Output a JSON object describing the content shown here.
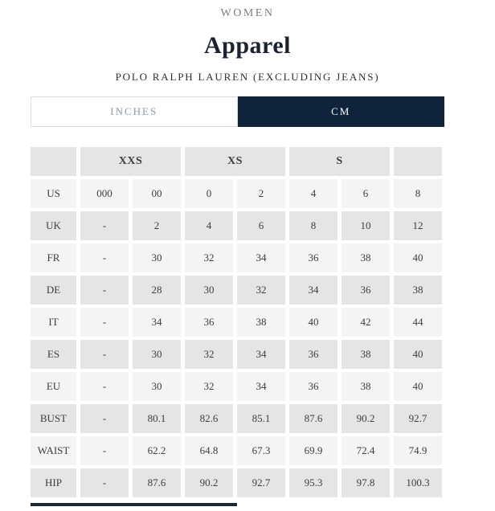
{
  "header": {
    "category": "WOMEN",
    "title": "Apparel",
    "subtitle": "POLO RALPH LAUREN (EXCLUDING JEANS)"
  },
  "tabs": {
    "inches_label": "INCHES",
    "cm_label": "CM",
    "active": "CM"
  },
  "size_chart": {
    "group_headers": [
      {
        "label": "",
        "span": 1
      },
      {
        "label": "XXS",
        "span": 2
      },
      {
        "label": "XS",
        "span": 2
      },
      {
        "label": "S",
        "span": 2
      },
      {
        "label": "",
        "span": 1
      }
    ],
    "rows": [
      {
        "label": "US",
        "bold_label": false,
        "bold_values": false,
        "values": [
          "000",
          "00",
          "0",
          "2",
          "4",
          "6",
          "8"
        ]
      },
      {
        "label": "UK",
        "bold_label": true,
        "bold_values": true,
        "values": [
          "-",
          "2",
          "4",
          "6",
          "8",
          "10",
          "12"
        ]
      },
      {
        "label": "FR",
        "bold_label": false,
        "bold_values": false,
        "values": [
          "-",
          "30",
          "32",
          "34",
          "36",
          "38",
          "40"
        ]
      },
      {
        "label": "DE",
        "bold_label": false,
        "bold_values": false,
        "values": [
          "-",
          "28",
          "30",
          "32",
          "34",
          "36",
          "38"
        ]
      },
      {
        "label": "IT",
        "bold_label": false,
        "bold_values": false,
        "values": [
          "-",
          "34",
          "36",
          "38",
          "40",
          "42",
          "44"
        ]
      },
      {
        "label": "ES",
        "bold_label": false,
        "bold_values": false,
        "values": [
          "-",
          "30",
          "32",
          "34",
          "36",
          "38",
          "40"
        ]
      },
      {
        "label": "EU",
        "bold_label": true,
        "bold_values": true,
        "values": [
          "-",
          "30",
          "32",
          "34",
          "36",
          "38",
          "40"
        ]
      },
      {
        "label": "BUST",
        "bold_label": true,
        "bold_values": false,
        "values": [
          "-",
          "80.1",
          "82.6",
          "85.1",
          "87.6",
          "90.2",
          "92.7"
        ]
      },
      {
        "label": "WAIST",
        "bold_label": true,
        "bold_values": false,
        "values": [
          "-",
          "62.2",
          "64.8",
          "67.3",
          "69.9",
          "72.4",
          "74.9"
        ]
      },
      {
        "label": "HIP",
        "bold_label": true,
        "bold_values": false,
        "values": [
          "-",
          "87.6",
          "90.2",
          "92.7",
          "95.3",
          "97.8",
          "100.3"
        ]
      }
    ]
  },
  "colors": {
    "accent_navy": "#0f233a",
    "inactive_tab_text": "#8d9aaa",
    "row_dark": "#e4e5e7",
    "row_light": "#f4f4f6",
    "scrollbar_thumb": "#1c2836",
    "category_text": "#7d7d7d",
    "title_text": "#1b2330"
  }
}
